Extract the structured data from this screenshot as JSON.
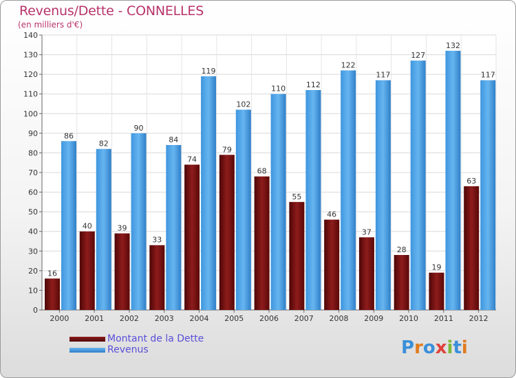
{
  "title": "Revenus/Dette - CONNELLES",
  "subtitle": "(en milliers d'€)",
  "logo_text": "Proxiti",
  "chart_data": {
    "type": "bar",
    "categories": [
      "2000",
      "2001",
      "2002",
      "2003",
      "2004",
      "2005",
      "2006",
      "2007",
      "2008",
      "2009",
      "2010",
      "2011",
      "2012"
    ],
    "series": [
      {
        "name": "Montant de la Dette",
        "color": "#7a0f0f",
        "values": [
          16,
          40,
          39,
          33,
          74,
          79,
          68,
          55,
          46,
          37,
          28,
          19,
          63
        ]
      },
      {
        "name": "Revenus",
        "color": "#3a8fd9",
        "values": [
          86,
          82,
          90,
          84,
          119,
          102,
          110,
          112,
          122,
          117,
          127,
          132,
          117
        ]
      }
    ],
    "ylim": [
      0,
      140
    ],
    "yticks": [
      0,
      10,
      20,
      30,
      40,
      50,
      60,
      70,
      80,
      90,
      100,
      110,
      120,
      130,
      140
    ],
    "grid": true,
    "legend_position": "bottom-left"
  }
}
